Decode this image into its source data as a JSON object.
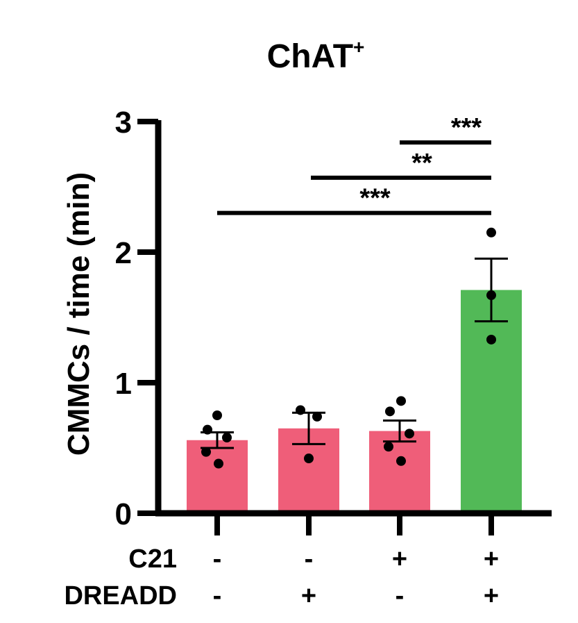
{
  "chart_data": {
    "type": "bar",
    "title": "ChAT",
    "title_superscript": "+",
    "ylabel": "CMMCs / time (min)",
    "ylim": [
      0,
      3
    ],
    "yticks": [
      "0",
      "1",
      "2",
      "3"
    ],
    "row_labels": [
      "C21",
      "DREADD"
    ],
    "categories": [
      {
        "c21": "-",
        "dreadd": "-"
      },
      {
        "c21": "-",
        "dreadd": "+"
      },
      {
        "c21": "+",
        "dreadd": "-"
      },
      {
        "c21": "+",
        "dreadd": "+"
      }
    ],
    "values": [
      0.56,
      0.65,
      0.63,
      1.71
    ],
    "sem": [
      0.06,
      0.12,
      0.08,
      0.24
    ],
    "points": [
      [
        0.75,
        0.64,
        0.58,
        0.47,
        0.38
      ],
      [
        0.79,
        0.74,
        0.42
      ],
      [
        0.86,
        0.78,
        0.61,
        0.51,
        0.4
      ],
      [
        2.15,
        1.67,
        1.33
      ]
    ],
    "colors": [
      "#ef5e79",
      "#ef5e79",
      "#ef5e79",
      "#52b957"
    ],
    "comparisons": [
      {
        "from": 2,
        "to": 3,
        "y": 2.84,
        "label": "***"
      },
      {
        "from": 1,
        "to": 3,
        "y": 2.57,
        "label": "**"
      },
      {
        "from": 0,
        "to": 3,
        "y": 2.3,
        "label": "***"
      }
    ],
    "grid": false,
    "legend": "none"
  }
}
